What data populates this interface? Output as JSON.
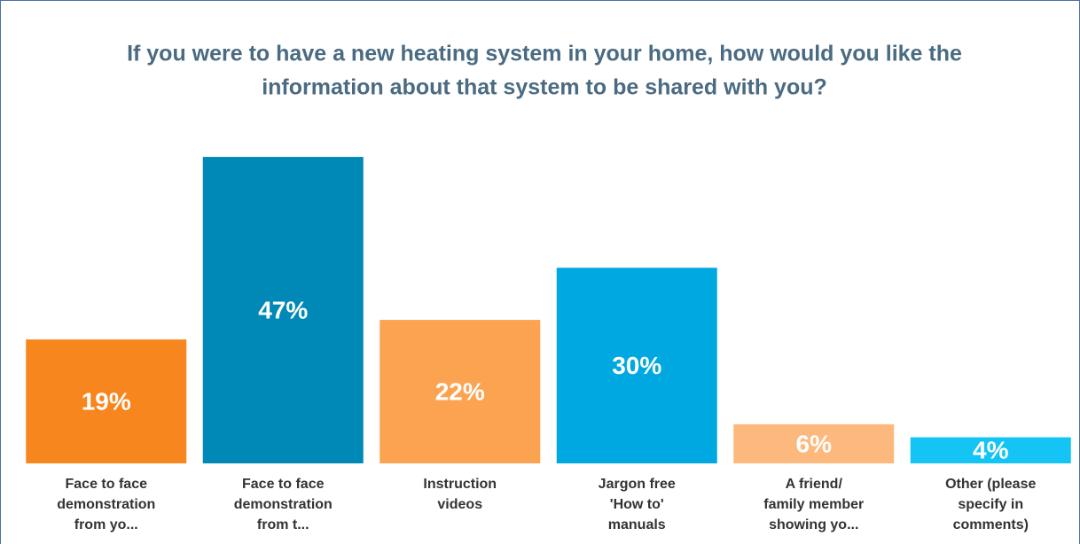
{
  "chart_data": {
    "type": "bar",
    "title": [
      "If you were to have a new heating system in your home, how would you like the",
      "information about that system to be shared with you?"
    ],
    "categories": [
      [
        "Face to face",
        "demonstration",
        "from yo..."
      ],
      [
        "Face to face",
        "demonstration",
        "from  t..."
      ],
      [
        "Instruction",
        "videos"
      ],
      [
        "Jargon free",
        "'How to'",
        "manuals"
      ],
      [
        "A friend/",
        "family member",
        "showing yo..."
      ],
      [
        "Other (please",
        "specify in",
        "comments)"
      ]
    ],
    "values": [
      19,
      47,
      22,
      30,
      6,
      4
    ],
    "value_labels": [
      "19%",
      "47%",
      "22%",
      "30%",
      "6%",
      "4%"
    ],
    "colors": [
      "#f7861e",
      "#0089b7",
      "#fba350",
      "#00a8e1",
      "#fdb97d",
      "#14c4f4"
    ],
    "ylim": [
      0,
      50
    ]
  }
}
